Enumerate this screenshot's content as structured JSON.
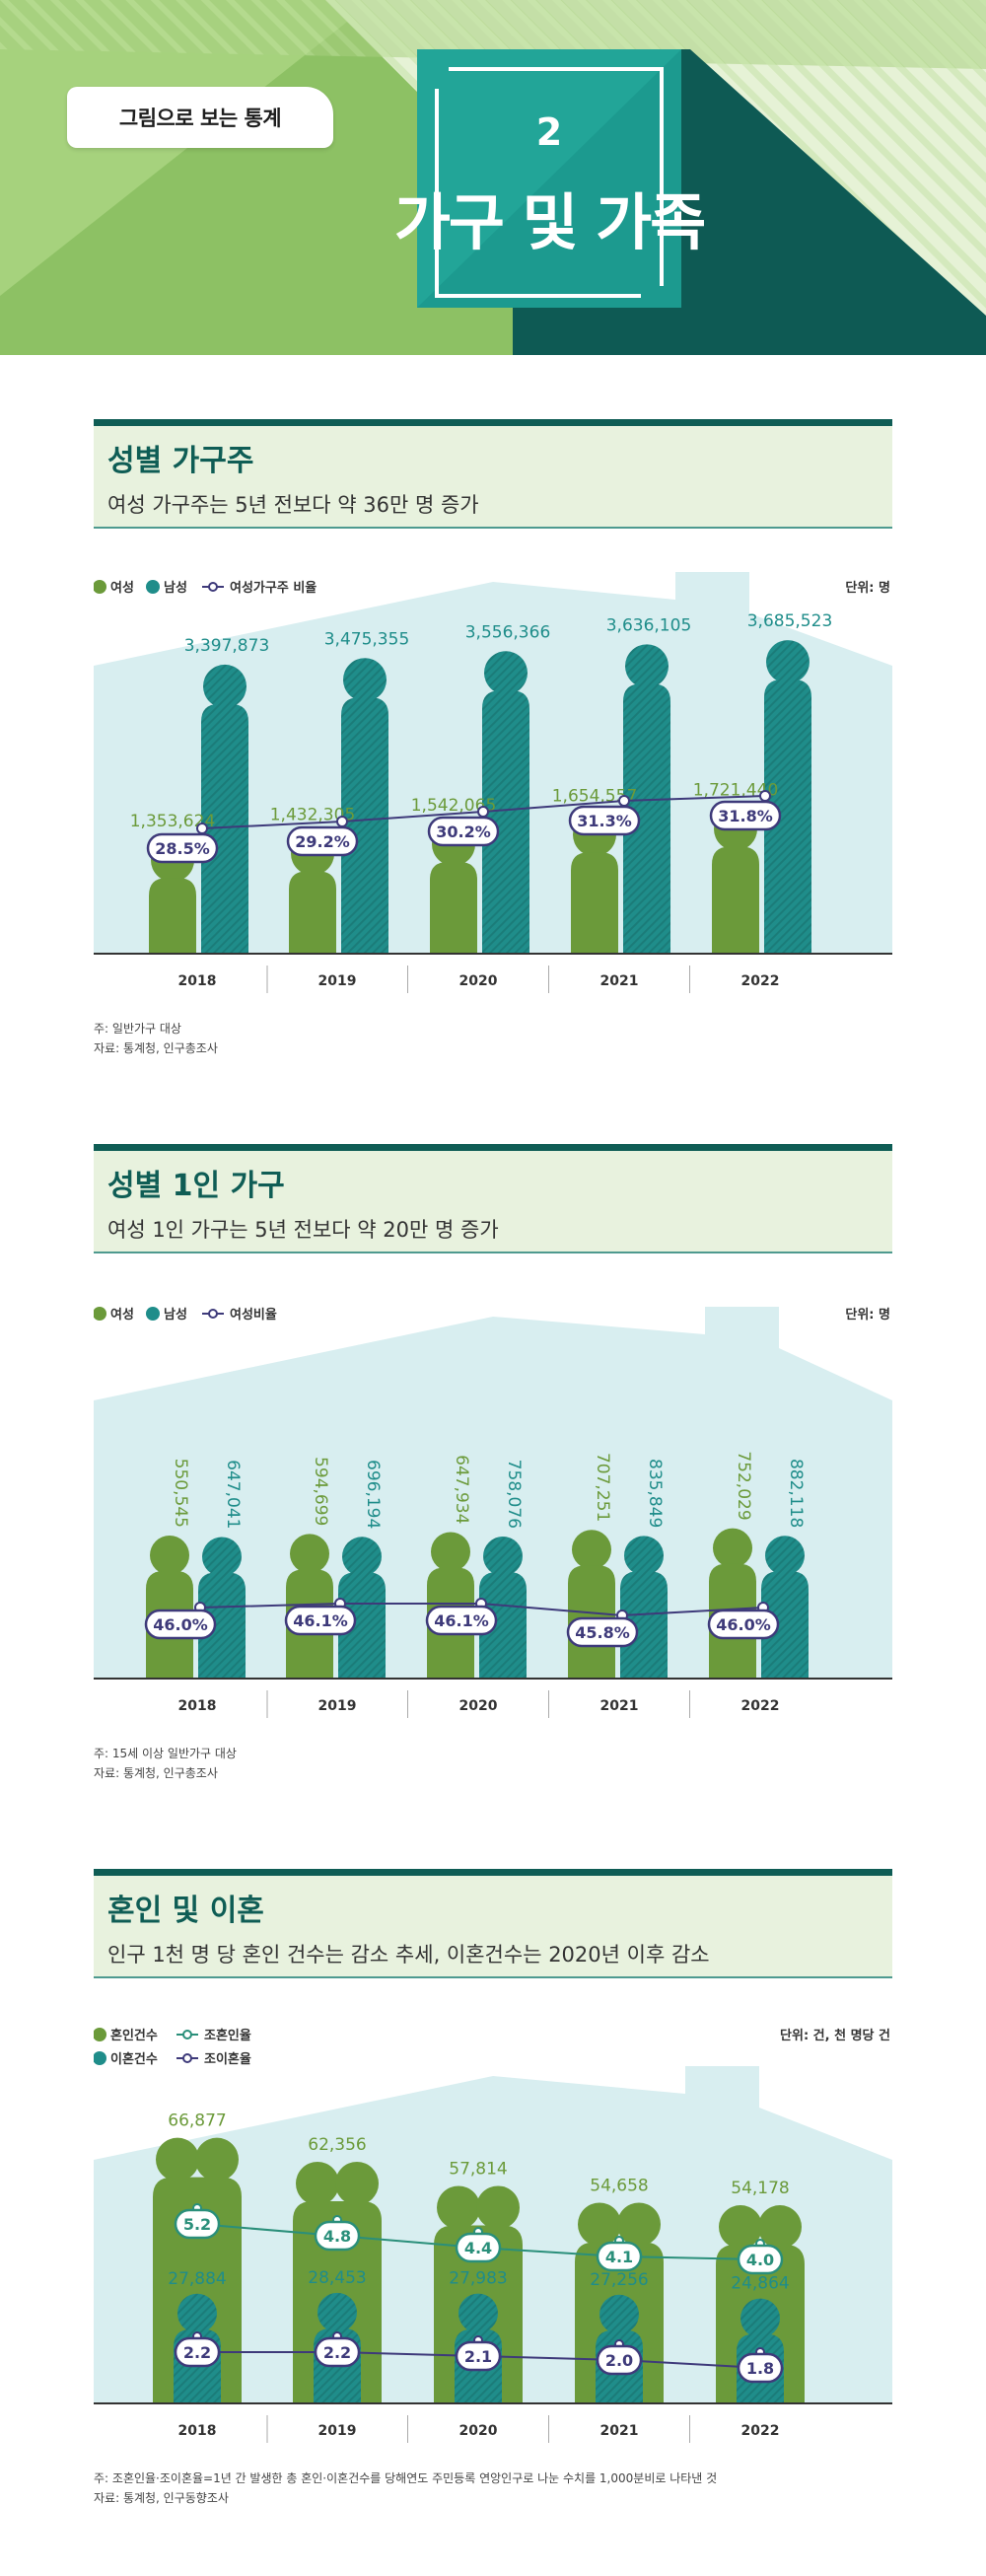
{
  "header": {
    "tag": "그림으로 보는 통계",
    "number": "2",
    "title": "가구 및 가족"
  },
  "colors": {
    "female": "#6b9a3a",
    "male": "#1f8d8a",
    "line": "#3e3a7a",
    "line2": "#2a8f7a",
    "header_bg": "#e8f2de",
    "header_bar": "#0f5d55",
    "house": "#d8eef0"
  },
  "sections": [
    {
      "title": "성별 가구주",
      "subtitle": "여성 가구주는 5년 전보다 약 36만 명 증가",
      "legend": [
        "여성",
        "남성",
        "여성가구주 비율"
      ],
      "unit": "단위: 명",
      "notes": [
        "주: 일반가구 대상",
        "자료: 통계청, 인구총조사"
      ]
    },
    {
      "title": "성별 1인 가구",
      "subtitle": "여성 1인 가구는 5년 전보다 약 20만 명 증가",
      "legend": [
        "여성",
        "남성",
        "여성비율"
      ],
      "unit": "단위: 명",
      "notes": [
        "주: 15세 이상 일반가구 대상",
        "자료: 통계청, 인구총조사"
      ]
    },
    {
      "title": "혼인 및 이혼",
      "subtitle": "인구 1천 명 당 혼인 건수는 감소 추세, 이혼건수는 2020년 이후 감소",
      "legend": [
        "혼인건수",
        "조혼인율",
        "이혼건수",
        "조이혼율"
      ],
      "unit": "단위: 건, 천 명당 건",
      "notes": [
        "주: 조혼인율·조이혼율=1년 간 발생한 총 혼인·이혼건수를 당해연도 주민등록 연앙인구로 나눈 수치를 1,000분비로 나타낸 것",
        "자료: 통계청, 인구동향조사"
      ]
    }
  ],
  "chart_data": [
    {
      "type": "bar",
      "categories": [
        "2018",
        "2019",
        "2020",
        "2021",
        "2022"
      ],
      "series": [
        {
          "name": "여성",
          "values": [
            1353624,
            1432305,
            1542065,
            1654557,
            1721440
          ],
          "labels": [
            "1,353,624",
            "1,432,305",
            "1,542,065",
            "1,654,557",
            "1,721,440"
          ]
        },
        {
          "name": "남성",
          "values": [
            3397873,
            3475355,
            3556366,
            3636105,
            3685523
          ],
          "labels": [
            "3,397,873",
            "3,475,355",
            "3,556,366",
            "3,636,105",
            "3,685,523"
          ]
        },
        {
          "name": "여성가구주 비율",
          "values": [
            28.5,
            29.2,
            30.2,
            31.3,
            31.8
          ],
          "labels": [
            "28.5%",
            "29.2%",
            "30.2%",
            "31.3%",
            "31.8%"
          ]
        }
      ]
    },
    {
      "type": "bar",
      "categories": [
        "2018",
        "2019",
        "2020",
        "2021",
        "2022"
      ],
      "series": [
        {
          "name": "여성",
          "values": [
            550545,
            594699,
            647934,
            707251,
            752029
          ],
          "labels": [
            "550,545",
            "594,699",
            "647,934",
            "707,251",
            "752,029"
          ]
        },
        {
          "name": "남성",
          "values": [
            647041,
            696194,
            758076,
            835849,
            882118
          ],
          "labels": [
            "647,041",
            "696,194",
            "758,076",
            "835,849",
            "882,118"
          ]
        },
        {
          "name": "여성비율",
          "values": [
            46.0,
            46.1,
            46.1,
            45.8,
            46.0
          ],
          "labels": [
            "46.0%",
            "46.1%",
            "46.1%",
            "45.8%",
            "46.0%"
          ]
        }
      ]
    },
    {
      "type": "bar",
      "categories": [
        "2018",
        "2019",
        "2020",
        "2021",
        "2022"
      ],
      "series": [
        {
          "name": "혼인건수",
          "values": [
            66877,
            62356,
            57814,
            54658,
            54178
          ],
          "labels": [
            "66,877",
            "62,356",
            "57,814",
            "54,658",
            "54,178"
          ]
        },
        {
          "name": "이혼건수",
          "values": [
            27884,
            28453,
            27983,
            27256,
            24864
          ],
          "labels": [
            "27,884",
            "28,453",
            "27,983",
            "27,256",
            "24,864"
          ]
        },
        {
          "name": "조혼인율",
          "values": [
            5.2,
            4.8,
            4.4,
            4.1,
            4.0
          ],
          "labels": [
            "5.2",
            "4.8",
            "4.4",
            "4.1",
            "4.0"
          ]
        },
        {
          "name": "조이혼율",
          "values": [
            2.2,
            2.2,
            2.1,
            2.0,
            1.8
          ],
          "labels": [
            "2.2",
            "2.2",
            "2.1",
            "2.0",
            "1.8"
          ]
        }
      ]
    }
  ]
}
